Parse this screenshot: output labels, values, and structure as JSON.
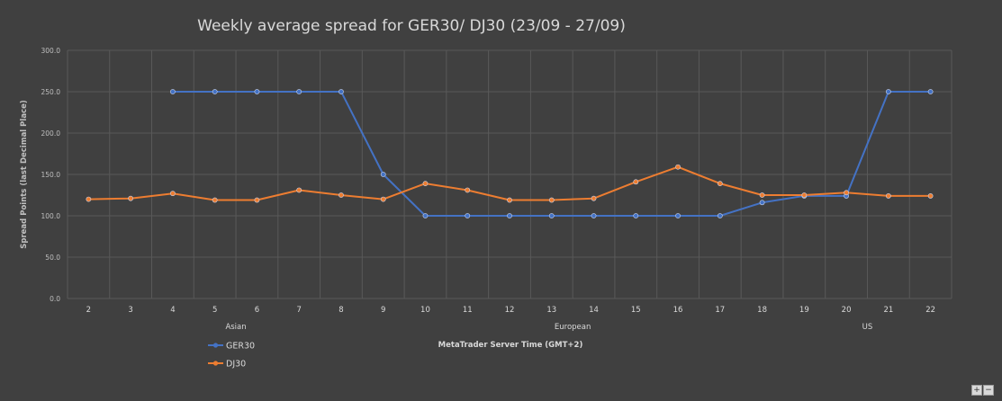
{
  "chart_data": {
    "type": "line",
    "title": "Weekly average spread for GER30/ DJ30 (23/09 - 27/09)",
    "xlabel": "MetaTrader Server Time (GMT+2)",
    "ylabel": "Spread Points  (last Decimal Place)",
    "ylim": [
      0,
      300
    ],
    "y_ticks": [
      "0.0",
      "50.0",
      "100.0",
      "150.0",
      "200.0",
      "250.0",
      "300.0"
    ],
    "categories": [
      "2",
      "3",
      "4",
      "5",
      "6",
      "7",
      "8",
      "9",
      "10",
      "11",
      "12",
      "13",
      "14",
      "15",
      "16",
      "17",
      "18",
      "19",
      "20",
      "21",
      "22"
    ],
    "sessions": [
      {
        "label": "Asian",
        "category": "5"
      },
      {
        "label": "European",
        "category": "13"
      },
      {
        "label": "US",
        "category": "20"
      }
    ],
    "grid": true,
    "legend_position": "bottom-left",
    "series": [
      {
        "name": "GER30",
        "color": "#4472c4",
        "values": [
          null,
          null,
          250,
          250,
          250,
          250,
          250,
          150,
          100,
          100,
          100,
          100,
          100,
          100,
          100,
          100,
          116,
          124,
          124,
          250,
          250
        ]
      },
      {
        "name": "DJ30",
        "color": "#ed7d31",
        "values": [
          120,
          121,
          127,
          119,
          119,
          131,
          125,
          120,
          139,
          131,
          119,
          119,
          121,
          141,
          159,
          139,
          125,
          125,
          128,
          124,
          124
        ]
      }
    ]
  },
  "controls": {
    "zoom_in": "+",
    "zoom_out": "−"
  }
}
